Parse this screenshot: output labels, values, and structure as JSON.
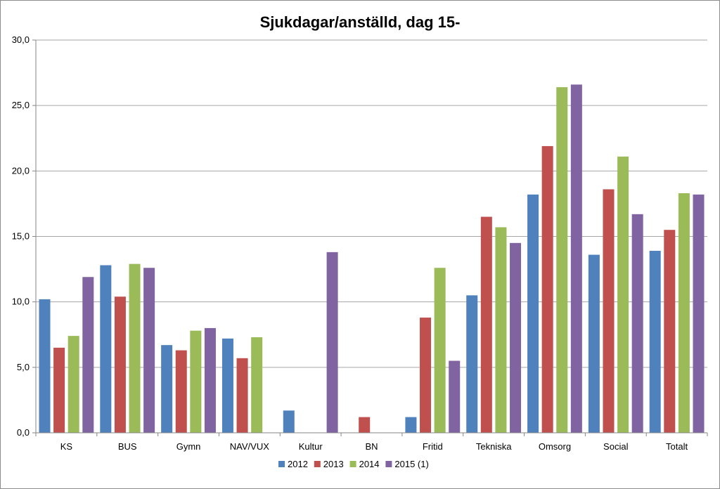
{
  "chart_data": {
    "type": "bar",
    "title": "Sjukdagar/anställd, dag 15-",
    "xlabel": "",
    "ylabel": "",
    "ylim": [
      0,
      30
    ],
    "yticks": [
      "0,0",
      "5,0",
      "10,0",
      "15,0",
      "20,0",
      "25,0",
      "30,0"
    ],
    "ytick_values": [
      0,
      5,
      10,
      15,
      20,
      25,
      30
    ],
    "grid": true,
    "legend_position": "bottom",
    "categories": [
      "KS",
      "BUS",
      "Gymn",
      "NAV/VUX",
      "Kultur",
      "BN",
      "Fritid",
      "Tekniska",
      "Omsorg",
      "Social",
      "Totalt"
    ],
    "series": [
      {
        "name": "2012",
        "color": "#4f81bd",
        "values": [
          10.2,
          12.8,
          6.7,
          7.2,
          1.7,
          null,
          1.2,
          10.5,
          18.2,
          13.6,
          13.9
        ]
      },
      {
        "name": "2013",
        "color": "#c0504d",
        "values": [
          6.5,
          10.4,
          6.3,
          5.7,
          null,
          1.2,
          8.8,
          16.5,
          21.9,
          18.6,
          15.5
        ]
      },
      {
        "name": "2014",
        "color": "#9bbb59",
        "values": [
          7.4,
          12.9,
          7.8,
          7.3,
          null,
          null,
          12.6,
          15.7,
          26.4,
          21.1,
          18.3
        ]
      },
      {
        "name": "2015 (1)",
        "color": "#8064a2",
        "values": [
          11.9,
          12.6,
          8.0,
          null,
          13.8,
          null,
          5.5,
          14.5,
          26.6,
          16.7,
          18.2
        ]
      }
    ]
  }
}
